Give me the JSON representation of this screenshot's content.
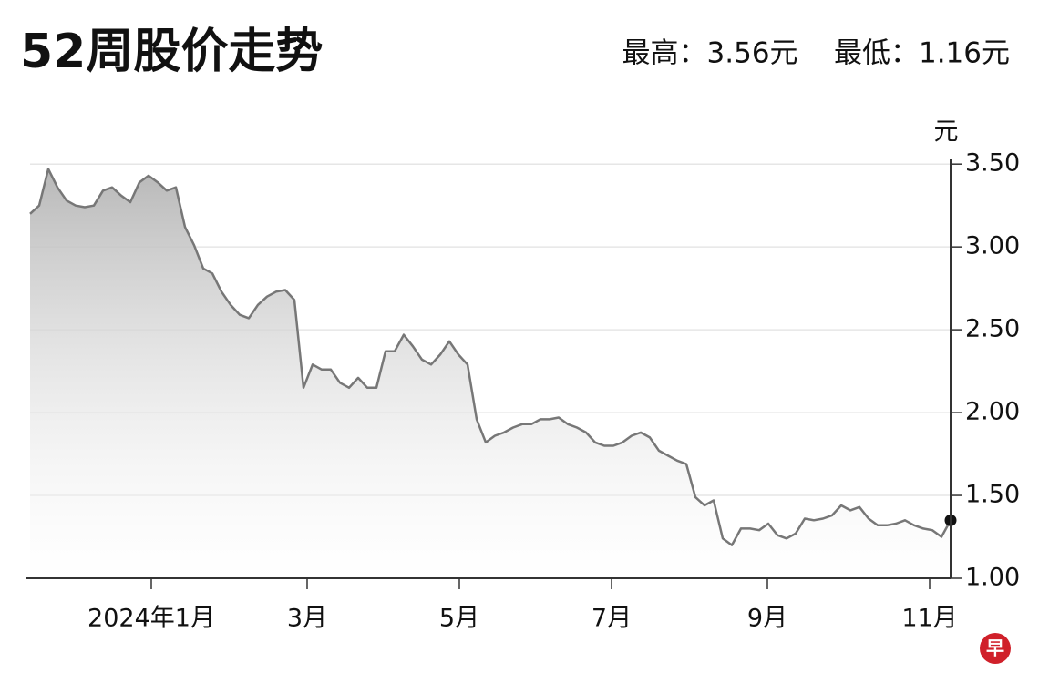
{
  "chart_data": {
    "type": "area",
    "title": "52周股价走势",
    "subtitle": "最高：3.56元    最低：1.16元",
    "y_label": "元",
    "logo": "早",
    "color": "#777777",
    "grid": true,
    "values": [
      3.2,
      3.25,
      3.47,
      3.36,
      3.28,
      3.25,
      3.24,
      3.25,
      3.34,
      3.36,
      3.31,
      3.27,
      3.39,
      3.43,
      3.39,
      3.34,
      3.36,
      3.12,
      3.01,
      2.87,
      2.84,
      2.73,
      2.65,
      2.59,
      2.57,
      2.65,
      2.7,
      2.73,
      2.74,
      2.68,
      2.15,
      2.29,
      2.26,
      2.26,
      2.18,
      2.15,
      2.21,
      2.15,
      2.15,
      2.37,
      2.37,
      2.47,
      2.4,
      2.32,
      2.29,
      2.35,
      2.43,
      2.35,
      2.29,
      1.96,
      1.82,
      1.86,
      1.88,
      1.91,
      1.93,
      1.93,
      1.96,
      1.96,
      1.97,
      1.93,
      1.91,
      1.88,
      1.82,
      1.8,
      1.8,
      1.82,
      1.86,
      1.88,
      1.85,
      1.77,
      1.74,
      1.71,
      1.69,
      1.49,
      1.44,
      1.47,
      1.24,
      1.2,
      1.3,
      1.3,
      1.29,
      1.33,
      1.26,
      1.24,
      1.27,
      1.36,
      1.35,
      1.36,
      1.38,
      1.44,
      1.41,
      1.43,
      1.36,
      1.32,
      1.32,
      1.33,
      1.35,
      1.32,
      1.3,
      1.29,
      1.25,
      1.35
    ],
    "xlim": [
      0,
      101
    ],
    "xticks": [
      {
        "value": 13.3,
        "label": "2024年1月"
      },
      {
        "value": 30.4,
        "label": "3月"
      },
      {
        "value": 47.1,
        "label": "5月"
      },
      {
        "value": 63.8,
        "label": "7月"
      },
      {
        "value": 80.9,
        "label": "9月"
      },
      {
        "value": 98.7,
        "label": "11月"
      }
    ],
    "ylim": [
      1,
      3.6
    ],
    "yticks": [
      {
        "value": 1,
        "label": "1.00"
      },
      {
        "value": 1.5,
        "label": "1.50"
      },
      {
        "value": 2,
        "label": "2.00"
      },
      {
        "value": 2.5,
        "label": "2.50"
      },
      {
        "value": 3,
        "label": "3.00"
      },
      {
        "value": 3.5,
        "label": "3.50"
      }
    ]
  }
}
